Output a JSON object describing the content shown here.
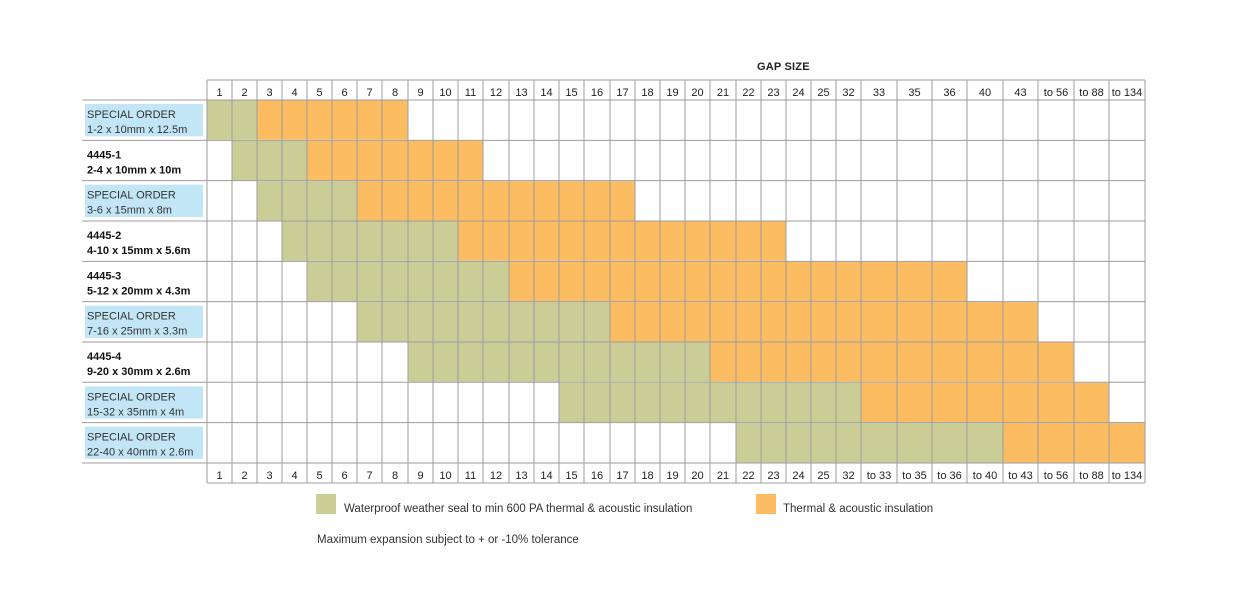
{
  "chart_data": {
    "type": "table",
    "title": "GAP SIZE",
    "columns_top": [
      "1",
      "2",
      "3",
      "4",
      "5",
      "6",
      "7",
      "8",
      "9",
      "10",
      "11",
      "12",
      "13",
      "14",
      "15",
      "16",
      "17",
      "18",
      "19",
      "20",
      "21",
      "22",
      "23",
      "24",
      "25",
      "32",
      "33",
      "35",
      "36",
      "40",
      "43",
      "to 56",
      "to 88",
      "to 134"
    ],
    "columns_bottom": [
      "1",
      "2",
      "3",
      "4",
      "5",
      "6",
      "7",
      "8",
      "9",
      "10",
      "11",
      "12",
      "13",
      "14",
      "15",
      "16",
      "17",
      "18",
      "19",
      "20",
      "21",
      "22",
      "23",
      "24",
      "25",
      "32",
      "to 33",
      "to 35",
      "to 36",
      "to 40",
      "to 43",
      "to 56",
      "to 88",
      "to 134"
    ],
    "rows": [
      {
        "line1": "SPECIAL ORDER",
        "line2": "1-2 x 10mm x 12.5m",
        "special": true,
        "waterproof": [
          0,
          1
        ],
        "thermal": [
          2,
          7
        ]
      },
      {
        "line1": "4445-1",
        "line2": "2-4 x 10mm x 10m",
        "special": false,
        "waterproof": [
          1,
          3
        ],
        "thermal": [
          4,
          10
        ]
      },
      {
        "line1": "SPECIAL ORDER",
        "line2": "3-6 x 15mm x 8m",
        "special": true,
        "waterproof": [
          2,
          5
        ],
        "thermal": [
          6,
          16
        ]
      },
      {
        "line1": "4445-2",
        "line2": "4-10 x 15mm x 5.6m",
        "special": false,
        "waterproof": [
          3,
          9
        ],
        "thermal": [
          10,
          22
        ]
      },
      {
        "line1": "4445-3",
        "line2": "5-12 x 20mm x 4.3m",
        "special": false,
        "waterproof": [
          4,
          11
        ],
        "thermal": [
          12,
          28
        ]
      },
      {
        "line1": "SPECIAL ORDER",
        "line2": "7-16 x 25mm x 3.3m",
        "special": true,
        "waterproof": [
          6,
          15
        ],
        "thermal": [
          16,
          30
        ]
      },
      {
        "line1": "4445-4",
        "line2": "9-20 x 30mm x 2.6m",
        "special": false,
        "waterproof": [
          8,
          19
        ],
        "thermal": [
          20,
          31
        ]
      },
      {
        "line1": "SPECIAL ORDER",
        "line2": "15-32 x 35mm x 4m",
        "special": true,
        "waterproof": [
          14,
          25
        ],
        "thermal": [
          26,
          32
        ]
      },
      {
        "line1": "SPECIAL ORDER",
        "line2": "22-40 x 40mm x 2.6m",
        "special": true,
        "waterproof": [
          21,
          29
        ],
        "thermal": [
          30,
          33
        ]
      }
    ],
    "legend": [
      {
        "name": "Waterproof weather seal to min 600 PA thermal & acoustic insulation",
        "color": "#cbcd97"
      },
      {
        "name": "Thermal & acoustic insulation",
        "color": "#fbbc62"
      }
    ]
  },
  "note": "Maximum expansion subject to + or -10% tolerance",
  "colors": {
    "waterproof": "#cbcd97",
    "thermal": "#fbbc62",
    "special_bg": "#c3e6f7",
    "grid": "#9d9d9d",
    "cell_border": "#ffffff"
  }
}
